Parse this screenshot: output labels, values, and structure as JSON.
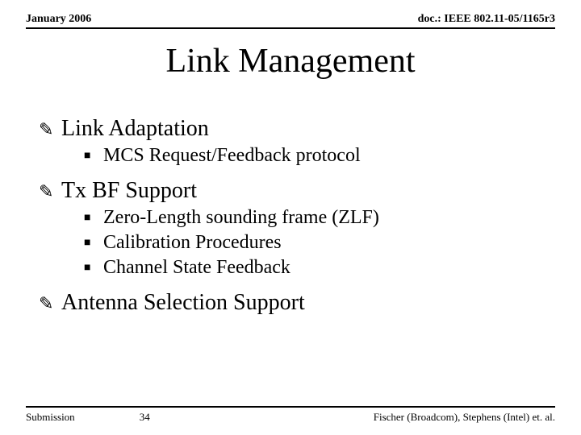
{
  "header": {
    "left": "January 2006",
    "right": "doc.: IEEE 802.11-05/1165r3"
  },
  "title": "Link Management",
  "bullets": {
    "level1_glyph": "✎",
    "level2_glyph": "■"
  },
  "sections": [
    {
      "label": "Link Adaptation",
      "items": [
        "MCS Request/Feedback protocol"
      ]
    },
    {
      "label": "Tx BF Support",
      "items": [
        "Zero-Length sounding frame (ZLF)",
        "Calibration Procedures",
        "Channel State Feedback"
      ]
    },
    {
      "label": "Antenna Selection Support",
      "items": []
    }
  ],
  "footer": {
    "left": "Submission",
    "page": "34",
    "right": "Fischer (Broadcom), Stephens (Intel) et. al."
  }
}
